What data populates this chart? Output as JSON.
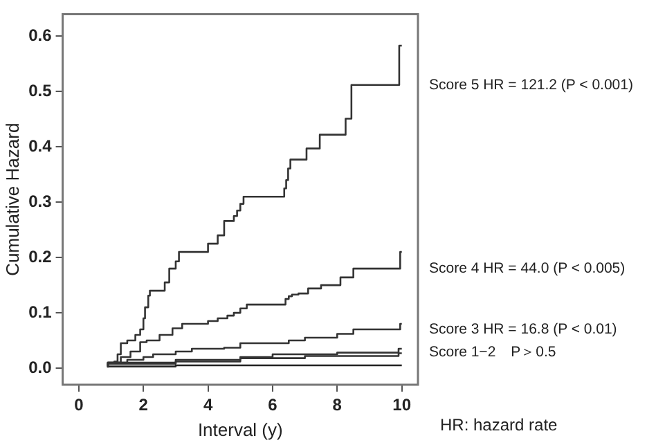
{
  "chart_data": {
    "type": "step",
    "xlabel": "Interval (y)",
    "ylabel": "Cumulative Hazard",
    "xlim": [
      -0.5,
      10.5
    ],
    "ylim": [
      -0.03,
      0.64
    ],
    "xticks": [
      0,
      2,
      4,
      6,
      8,
      10
    ],
    "yticks": [
      {
        "value": 0,
        "label": "0.0"
      },
      {
        "value": 0.1,
        "label": "0.1"
      },
      {
        "value": 0.2,
        "label": "0.2"
      },
      {
        "value": 0.3,
        "label": "0.3"
      },
      {
        "value": 0.4,
        "label": "0.4"
      },
      {
        "value": 0.5,
        "label": "0.5"
      },
      {
        "value": 0.6,
        "label": "0.6"
      }
    ],
    "grid": false,
    "legend": false,
    "marker": "none",
    "line_style": "solid",
    "annotations": [
      "HR: hazard rate"
    ],
    "series": [
      {
        "name": "Score 5 HR = 121.2 (P < 0.001)",
        "color": "#333333",
        "x": [
          0.9,
          1.1,
          1.2,
          1.3,
          1.5,
          1.75,
          1.9,
          2.0,
          2.05,
          2.15,
          2.2,
          2.66,
          2.8,
          3.0,
          3.1,
          4.0,
          4.3,
          4.5,
          4.8,
          4.9,
          5.0,
          5.1,
          6.36,
          6.42,
          6.48,
          6.55,
          7.05,
          7.46,
          8.26,
          8.44,
          9.92,
          10.0
        ],
        "values": [
          0.003,
          0.008,
          0.012,
          0.025,
          0.045,
          0.05,
          0.06,
          0.07,
          0.09,
          0.11,
          0.131,
          0.14,
          0.155,
          0.18,
          0.193,
          0.21,
          0.225,
          0.24,
          0.266,
          0.275,
          0.285,
          0.297,
          0.31,
          0.325,
          0.34,
          0.361,
          0.377,
          0.397,
          0.422,
          0.451,
          0.512,
          0.583
        ]
      },
      {
        "name": "Score 4 HR = 44.0 (P < 0.005)",
        "color": "#333333",
        "x": [
          0.9,
          1.3,
          1.6,
          1.9,
          2.1,
          2.5,
          2.9,
          3.2,
          4.0,
          4.3,
          4.6,
          4.8,
          5.0,
          5.2,
          6.4,
          6.5,
          6.6,
          6.8,
          7.1,
          7.5,
          8.1,
          8.5,
          9.95,
          10.0
        ],
        "values": [
          0.005,
          0.01,
          0.02,
          0.03,
          0.047,
          0.05,
          0.06,
          0.072,
          0.08,
          0.085,
          0.09,
          0.095,
          0.1,
          0.108,
          0.115,
          0.125,
          0.13,
          0.133,
          0.135,
          0.144,
          0.15,
          0.164,
          0.18,
          0.21
        ]
      },
      {
        "name": "Score 3 HR = 16.8 (P < 0.01)",
        "color": "#333333",
        "x": [
          0.9,
          1.5,
          2.0,
          2.3,
          3.0,
          3.5,
          4.5,
          5.0,
          6.5,
          7.0,
          8.0,
          8.5,
          9.95,
          10.0
        ],
        "values": [
          0.003,
          0.01,
          0.015,
          0.02,
          0.025,
          0.03,
          0.035,
          0.037,
          0.045,
          0.05,
          0.055,
          0.062,
          0.07,
          0.08
        ]
      },
      {
        "name": "Score 1−2　P＞0.5",
        "color": "#333333",
        "x": [
          0.9,
          3.0,
          5.0,
          6.0,
          8.0,
          9.9,
          10.0
        ],
        "values": [
          0.003,
          0.01,
          0.015,
          0.02,
          0.025,
          0.028,
          0.035
        ]
      },
      {
        "color": "#333333",
        "x": [
          0.9,
          3.0,
          5.0,
          7.0,
          9.9,
          10.0
        ],
        "values": [
          0.002,
          0.008,
          0.012,
          0.018,
          0.022,
          0.027
        ]
      },
      {
        "color": "#222222",
        "x": [
          0.9,
          3.0,
          10.0
        ],
        "values": [
          0.001,
          0.003,
          0.005
        ]
      }
    ]
  }
}
